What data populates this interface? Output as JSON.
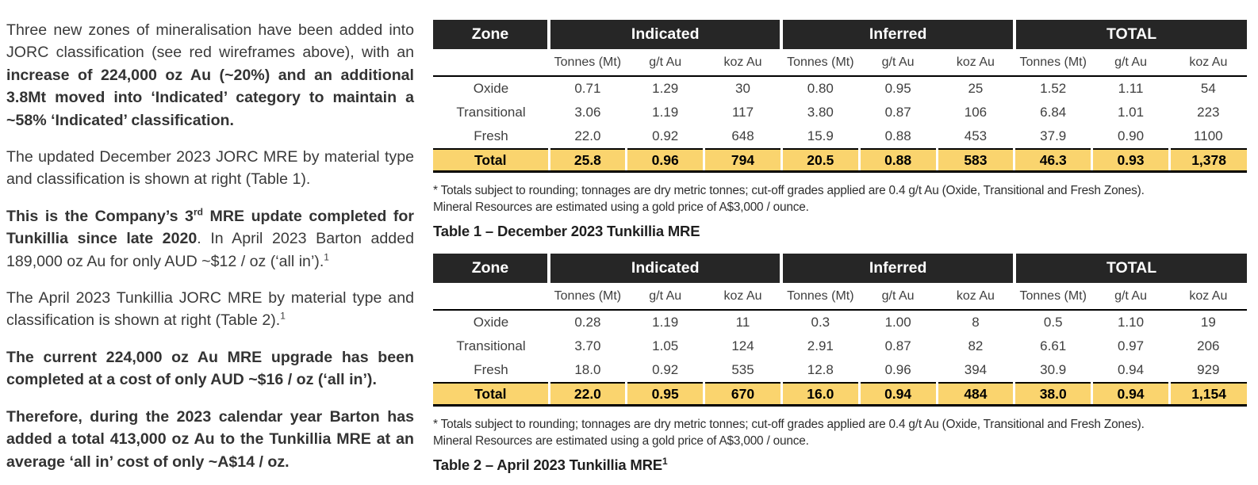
{
  "colors": {
    "header_bg": "#262626",
    "header_text": "#ffffff",
    "total_row_bg": "#fad46e",
    "body_text": "#3f3f3f",
    "rule_black": "#000000"
  },
  "left_column": {
    "p1": {
      "normal": "Three new zones of mineralisation have been added into JORC classification (see red wireframes above), with an ",
      "bold": "increase of 224,000 oz Au (~20%) and an additional 3.8Mt moved into ‘Indicated’ category to maintain a ~58% ‘Indicated’ classification."
    },
    "p2": {
      "text": "The updated December 2023 JORC MRE by material type and classification is shown at right (Table 1)."
    },
    "p3": {
      "bold_1": "This is the Company’s 3",
      "bold_sup": "rd",
      "bold_2": " MRE update completed for Tunkillia since late 2020",
      "normal": ". In April 2023 Barton added 189,000 oz Au for only AUD ~$12 / oz (‘all in’).",
      "sup": "1"
    },
    "p4": {
      "text": "The April 2023 Tunkillia JORC MRE by material type and classification is shown at right (Table 2).",
      "sup": "1"
    },
    "p5": {
      "text": "The current 224,000 oz Au MRE upgrade has been completed at a cost of only AUD ~$16 / oz (‘all in’)."
    },
    "p6": {
      "text": "Therefore, during the 2023 calendar year Barton has added a total 413,000 oz Au to the Tunkillia MRE at an average ‘all in’ cost of only ~A$14 / oz."
    }
  },
  "tables": [
    {
      "group_headers": {
        "zone": "Zone",
        "indicated": "Indicated",
        "inferred": "Inferred",
        "total": "TOTAL"
      },
      "col_headers": [
        "Tonnes (Mt)",
        "g/t Au",
        "koz Au",
        "Tonnes (Mt)",
        "g/t Au",
        "koz Au",
        "Tonnes (Mt)",
        "g/t Au",
        "koz Au"
      ],
      "rows": [
        {
          "zone": "Oxide",
          "values": [
            "0.71",
            "1.29",
            "30",
            "0.80",
            "0.95",
            "25",
            "1.52",
            "1.11",
            "54"
          ]
        },
        {
          "zone": "Transitional",
          "values": [
            "3.06",
            "1.19",
            "117",
            "3.80",
            "0.87",
            "106",
            "6.84",
            "1.01",
            "223"
          ]
        },
        {
          "zone": "Fresh",
          "values": [
            "22.0",
            "0.92",
            "648",
            "15.9",
            "0.88",
            "453",
            "37.9",
            "0.90",
            "1100"
          ]
        }
      ],
      "total": {
        "zone": "Total",
        "values": [
          "25.8",
          "0.96",
          "794",
          "20.5",
          "0.88",
          "583",
          "46.3",
          "0.93",
          "1,378"
        ]
      },
      "footnote_lines": [
        "* Totals subject to rounding; tonnages are dry metric tonnes; cut-off grades applied are 0.4 g/t Au (Oxide, Transitional and Fresh Zones).",
        "Mineral Resources are estimated using a gold price of A$3,000 / ounce."
      ],
      "caption": "Table 1 – December 2023 Tunkillia MRE"
    },
    {
      "group_headers": {
        "zone": "Zone",
        "indicated": "Indicated",
        "inferred": "Inferred",
        "total": "TOTAL"
      },
      "col_headers": [
        "Tonnes (Mt)",
        "g/t Au",
        "koz Au",
        "Tonnes (Mt)",
        "g/t Au",
        "koz Au",
        "Tonnes (Mt)",
        "g/t Au",
        "koz Au"
      ],
      "rows": [
        {
          "zone": "Oxide",
          "values": [
            "0.28",
            "1.19",
            "11",
            "0.3",
            "1.00",
            "8",
            "0.5",
            "1.10",
            "19"
          ]
        },
        {
          "zone": "Transitional",
          "values": [
            "3.70",
            "1.05",
            "124",
            "2.91",
            "0.87",
            "82",
            "6.61",
            "0.97",
            "206"
          ]
        },
        {
          "zone": "Fresh",
          "values": [
            "18.0",
            "0.92",
            "535",
            "12.8",
            "0.96",
            "394",
            "30.9",
            "0.94",
            "929"
          ]
        }
      ],
      "total": {
        "zone": "Total",
        "values": [
          "22.0",
          "0.95",
          "670",
          "16.0",
          "0.94",
          "484",
          "38.0",
          "0.94",
          "1,154"
        ]
      },
      "footnote_lines": [
        "* Totals subject to rounding; tonnages are dry metric tonnes; cut-off grades applied are 0.4 g/t Au (Oxide, Transitional and Fresh Zones).",
        "Mineral Resources are estimated using a gold price of A$3,000 / ounce."
      ],
      "caption": "Table 2 – April 2023 Tunkillia MRE",
      "caption_sup": "1"
    }
  ]
}
